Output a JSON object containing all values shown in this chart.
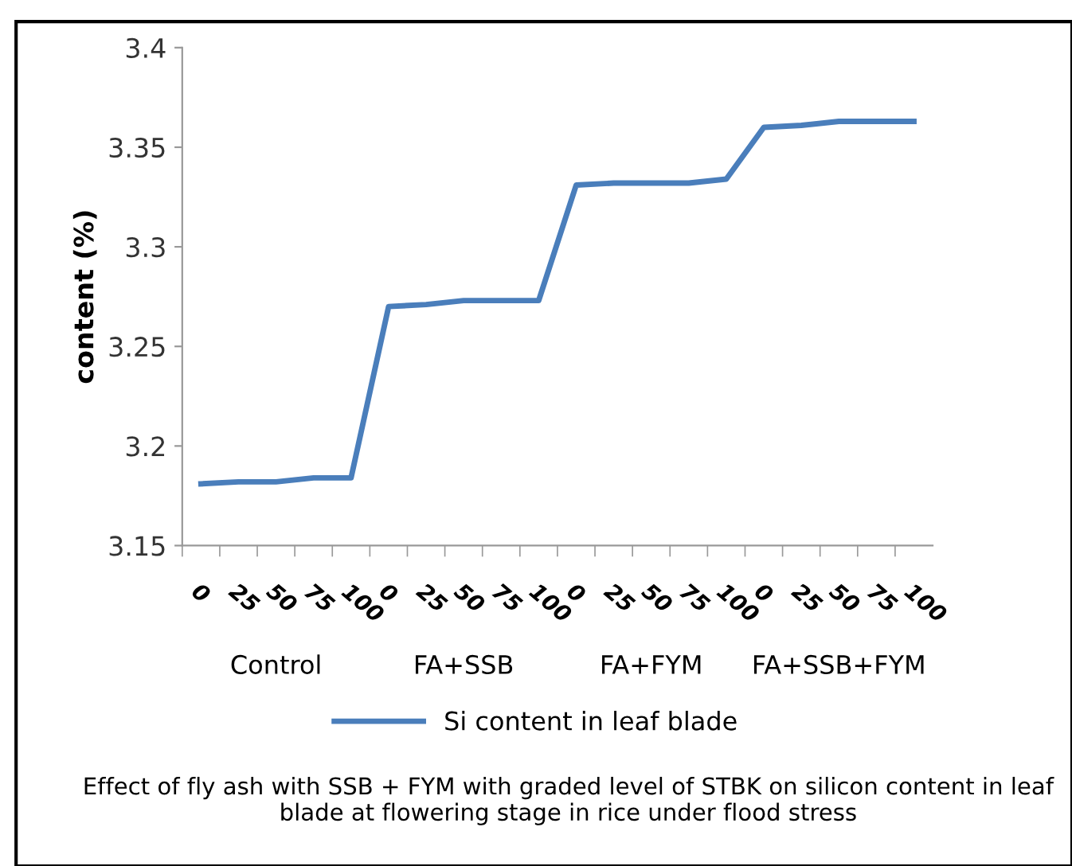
{
  "chart_data": {
    "type": "line",
    "title": "Effect of fly ash with SSB + FYM with graded level of STBK on silicon content in leaf blade at flowering stage in rice under flood stress",
    "ylabel": "content (%)",
    "categories": [
      "0",
      "25",
      "50",
      "75",
      "100",
      "0",
      "25",
      "50",
      "75",
      "100",
      "0",
      "25",
      "50",
      "75",
      "100",
      "0",
      "25",
      "50",
      "75",
      "100"
    ],
    "series": [
      {
        "name": "Si content in leaf blade",
        "color": "#4a7ebb",
        "values": [
          3.181,
          3.182,
          3.182,
          3.184,
          3.184,
          3.27,
          3.271,
          3.273,
          3.273,
          3.273,
          3.331,
          3.332,
          3.332,
          3.332,
          3.334,
          3.36,
          3.361,
          3.363,
          3.363,
          3.363
        ]
      }
    ],
    "annotations": [
      "Control",
      "FA+SSB",
      "FA+FYM",
      "FA+SSB+FYM"
    ],
    "ylim": [
      3.15,
      3.4
    ],
    "yticks": [
      3.15,
      3.2,
      3.25,
      3.3,
      3.35,
      3.4
    ],
    "grid": false,
    "legend": "bottom",
    "marker": "none",
    "line_style": "solid"
  }
}
